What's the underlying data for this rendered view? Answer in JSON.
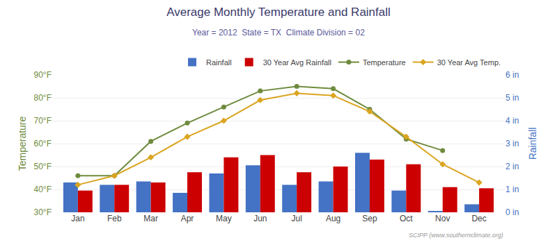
{
  "chart_data": {
    "type": "bar",
    "title": "Average Monthly Temperature and Rainfall",
    "subtitle": "Year = 2012  State = TX  Climate Division = 02",
    "categories": [
      "Jan",
      "Feb",
      "Mar",
      "Apr",
      "May",
      "Jun",
      "Jul",
      "Aug",
      "Sep",
      "Oct",
      "Nov",
      "Dec"
    ],
    "series": [
      {
        "name": "Rainfall",
        "type": "bar",
        "axis": "y2",
        "color": "#4472C4",
        "values": [
          1.3,
          1.2,
          1.35,
          0.85,
          1.7,
          2.05,
          1.2,
          1.35,
          2.6,
          0.95,
          0.05,
          0.35
        ]
      },
      {
        "name": "30 Year Avg Rainfall",
        "type": "bar",
        "axis": "y2",
        "color": "#CC0000",
        "values": [
          0.95,
          1.2,
          1.3,
          1.75,
          2.4,
          2.5,
          1.75,
          2.0,
          2.3,
          2.1,
          1.1,
          1.05
        ]
      },
      {
        "name": "Temperature",
        "type": "line",
        "color": "#6E8B3D",
        "marker": "circle",
        "values": [
          46,
          46,
          61,
          69,
          76,
          83,
          85,
          84,
          75,
          62,
          57,
          null
        ]
      },
      {
        "name": "30 Year Avg Temp.",
        "type": "line",
        "color": "#DAA520",
        "marker": "diamond",
        "values": [
          42,
          46,
          54,
          63,
          70,
          79,
          82,
          81,
          74,
          63,
          51,
          43
        ]
      }
    ],
    "ylabel": "Temperature",
    "y2label": "Rainfall",
    "ylim": [
      30,
      90
    ],
    "yticks": [
      {
        "value": 30,
        "label": "30°F"
      },
      {
        "value": 40,
        "label": "40°F"
      },
      {
        "value": 50,
        "label": "50°F"
      },
      {
        "value": 60,
        "label": "60°F"
      },
      {
        "value": 70,
        "label": "70°F"
      },
      {
        "value": 80,
        "label": "80°F"
      },
      {
        "value": 90,
        "label": "90°F"
      }
    ],
    "y2lim": [
      0,
      6
    ],
    "y2ticks": [
      {
        "value": 0,
        "label": "0 in"
      },
      {
        "value": 1,
        "label": "1 in"
      },
      {
        "value": 2,
        "label": "2 in"
      },
      {
        "value": 3,
        "label": "3 in"
      },
      {
        "value": 4,
        "label": "4 in"
      },
      {
        "value": 5,
        "label": "5 in"
      },
      {
        "value": 6,
        "label": "6 in"
      }
    ],
    "grid": true,
    "legend": "upper right",
    "annotations": [
      "SCIPP (www.southernclimate.org)"
    ]
  }
}
